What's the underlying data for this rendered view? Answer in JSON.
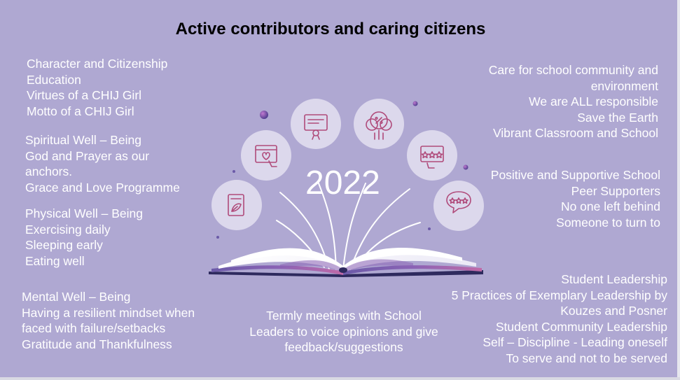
{
  "title": "Active contributors and caring citizens",
  "year": "2022",
  "left_blocks": [
    {
      "lines": [
        "Character and Citizenship",
        "Education",
        "Virtues of a CHIJ Girl",
        "Motto of a CHIJ Girl"
      ]
    },
    {
      "lines": [
        "Spiritual Well – Being",
        "God and Prayer as our",
        "anchors.",
        "Grace and Love Programme"
      ]
    },
    {
      "lines": [
        "Physical Well – Being",
        "Exercising daily",
        "Sleeping early",
        "Eating well"
      ]
    },
    {
      "lines": [
        "Mental Well – Being",
        "Having a resilient mindset when",
        "faced with failure/setbacks",
        "Gratitude and Thankfulness"
      ]
    }
  ],
  "center_block": {
    "lines": [
      "Termly meetings with School",
      "Leaders to voice opinions and give",
      "feedback/suggestions"
    ]
  },
  "right_blocks": [
    {
      "lines": [
        "Care for school community and",
        "environment",
        "We are ALL responsible",
        "Save the Earth",
        "Vibrant Classroom and School"
      ]
    },
    {
      "lines": [
        "Positive and Supportive School",
        "Peer Supporters",
        "No one left behind",
        "Someone to turn to"
      ]
    },
    {
      "lines": [
        "Student Leadership",
        "5 Practices of Exemplary Leadership by",
        "Kouzes and Posner",
        "Student Community Leadership",
        "Self – Discipline - Leading oneself",
        "To serve and not to be served"
      ]
    }
  ],
  "icons": [
    "leaf-card-icon",
    "heart-hand-screen-icon",
    "certificate-icon",
    "percent-balloons-icon",
    "star-rating-hand-icon",
    "star-speech-bubble-icon"
  ],
  "colors": {
    "background": "#afa8d2",
    "bubble": "#dcd8ec",
    "icon_line": "#b04a7a",
    "book_dark": "#2e2a5e"
  }
}
